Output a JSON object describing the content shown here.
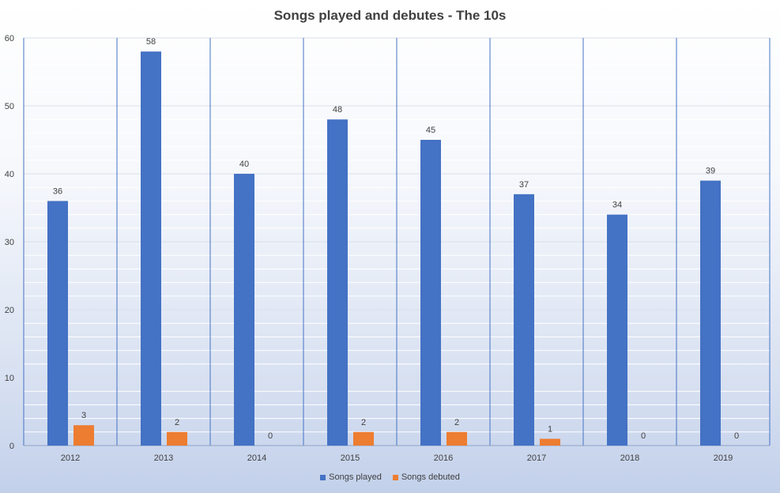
{
  "chart_data": {
    "type": "bar",
    "title": "Songs played and debutes - The 10s",
    "categories": [
      "2012",
      "2013",
      "2014",
      "2015",
      "2016",
      "2017",
      "2018",
      "2019"
    ],
    "series": [
      {
        "name": "Songs played",
        "color": "#4472C4",
        "values": [
          36,
          58,
          40,
          48,
          45,
          37,
          34,
          39
        ]
      },
      {
        "name": "Songs debuted",
        "color": "#ED7D31",
        "values": [
          3,
          2,
          0,
          2,
          2,
          1,
          0,
          0
        ]
      }
    ],
    "ylim": [
      0,
      60
    ],
    "yticks": [
      0,
      10,
      20,
      30,
      40,
      50,
      60
    ],
    "grid": true,
    "data_labels": true,
    "legend_position": "bottom"
  }
}
